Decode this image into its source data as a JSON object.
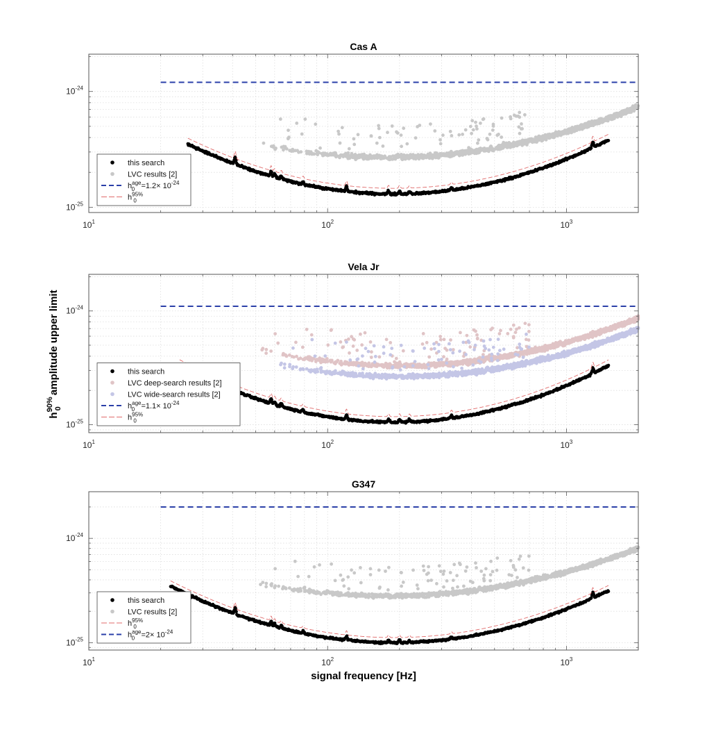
{
  "figure": {
    "xlabel": "signal frequency [Hz]",
    "ylabel": {
      "h": "h",
      "sup": "90%",
      "sub": "0",
      "rest": " amplitude upper limit"
    },
    "x_ticks": [
      {
        "base": "10",
        "exp": "1"
      },
      {
        "base": "10",
        "exp": "2"
      },
      {
        "base": "10",
        "exp": "3"
      }
    ],
    "y_ticks": [
      {
        "base": "10",
        "exp": "-25"
      },
      {
        "base": "10",
        "exp": "-24"
      }
    ]
  },
  "colors": {
    "this_search": "#000000",
    "lvc": "#c8c8c8",
    "lvc_deep": "#e0c4c6",
    "lvc_wide": "#c4c6e6",
    "h_age": "#2a3fa8",
    "h95": "#e06a6a"
  },
  "chart_data": [
    {
      "type": "scatter",
      "title": "Cas A",
      "xscale": "log",
      "yscale": "log",
      "xlim": [
        10,
        2000
      ],
      "ylim": [
        9e-26,
        2.1e-24
      ],
      "grid": true,
      "legend_position": "bottom-left",
      "legend": [
        {
          "kind": "dot",
          "color": "#000000",
          "label": "this search"
        },
        {
          "kind": "dot",
          "color": "#c8c8c8",
          "label": "LVC results [2]"
        },
        {
          "kind": "dash",
          "color": "#2a3fa8",
          "h": "h",
          "sup": "age",
          "sub": "0",
          "rest": "=1.2× 10",
          "exp": "-24"
        },
        {
          "kind": "thin",
          "color": "#e06a6a",
          "h": "h",
          "sup": "95%",
          "sub": "0",
          "rest": "",
          "exp": ""
        }
      ],
      "this_search": {
        "x_range": [
          26,
          1500
        ],
        "floor": 1.3e-25,
        "f_min": 190,
        "width": 0.58
      },
      "h95_factor": 1.12,
      "h_age": {
        "value": 1.2e-24,
        "x_range": [
          20,
          2000
        ]
      },
      "lvc": [
        {
          "label": "LVC results [2]",
          "x_range": [
            50,
            2000
          ],
          "floor": 2.7e-25,
          "f_min": 180,
          "width": 0.4
        }
      ]
    },
    {
      "type": "scatter",
      "title": "Vela Jr",
      "xscale": "log",
      "yscale": "log",
      "xlim": [
        10,
        2000
      ],
      "ylim": [
        8.5e-26,
        2.1e-24
      ],
      "grid": true,
      "legend_position": "bottom-left",
      "legend": [
        {
          "kind": "dot",
          "color": "#000000",
          "label": "this search"
        },
        {
          "kind": "dot",
          "color": "#e0c4c6",
          "label": "LVC deep-search results [2]"
        },
        {
          "kind": "dot",
          "color": "#c4c6e6",
          "label": "LVC wide-search results [2]"
        },
        {
          "kind": "dash",
          "color": "#2a3fa8",
          "h": "h",
          "sup": "age",
          "sub": "0",
          "rest": "=1.1× 10",
          "exp": "-24"
        },
        {
          "kind": "thin",
          "color": "#e06a6a",
          "h": "h",
          "sup": "95%",
          "sub": "0",
          "rest": "",
          "exp": ""
        }
      ],
      "this_search": {
        "x_range": [
          24,
          1500
        ],
        "floor": 1.05e-25,
        "f_min": 190,
        "width": 0.62
      },
      "h95_factor": 1.12,
      "h_age": {
        "value": 1.1e-24,
        "x_range": [
          20,
          2000
        ]
      },
      "lvc": [
        {
          "label": "LVC deep-search results [2]",
          "x_range": [
            50,
            2000
          ],
          "floor": 3.3e-25,
          "f_min": 200,
          "width": 0.42
        },
        {
          "label": "LVC wide-search results [2]",
          "x_range": [
            60,
            2000
          ],
          "floor": 2.65e-25,
          "f_min": 200,
          "width": 0.42
        }
      ]
    },
    {
      "type": "scatter",
      "title": "G347",
      "xscale": "log",
      "yscale": "log",
      "xlim": [
        10,
        2000
      ],
      "ylim": [
        8.5e-26,
        2.8e-24
      ],
      "grid": true,
      "legend_position": "bottom-left",
      "legend": [
        {
          "kind": "dot",
          "color": "#000000",
          "label": "this search"
        },
        {
          "kind": "dot",
          "color": "#c8c8c8",
          "label": "LVC results [2]"
        },
        {
          "kind": "thin",
          "color": "#e06a6a",
          "h": "h",
          "sup": "95%",
          "sub": "0",
          "rest": "",
          "exp": ""
        },
        {
          "kind": "dash",
          "color": "#2a3fa8",
          "h": "h",
          "sup": "age",
          "sub": "0",
          "rest": "=2× 10",
          "exp": "-24"
        }
      ],
      "this_search": {
        "x_range": [
          22,
          1500
        ],
        "floor": 1e-25,
        "f_min": 190,
        "width": 0.62
      },
      "h95_factor": 1.12,
      "h_age": {
        "value": 2e-24,
        "x_range": [
          20,
          2000
        ]
      },
      "lvc": [
        {
          "label": "LVC results [2]",
          "x_range": [
            50,
            2000
          ],
          "floor": 2.8e-25,
          "f_min": 180,
          "width": 0.42
        }
      ]
    }
  ]
}
